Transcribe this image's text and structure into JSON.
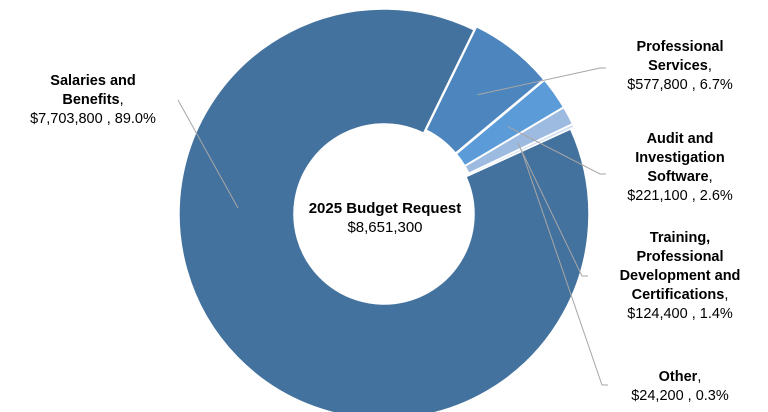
{
  "chart_data": {
    "type": "pie",
    "variant": "donut",
    "center_title": "2025 Budget Request",
    "center_value": "$8,651,300",
    "legend": "none",
    "slices": [
      {
        "label_lines": [
          "Salaries and",
          "Benefits"
        ],
        "value": 7703800,
        "value_text": "$7,703,800",
        "percent_text": "89.0%",
        "color": "#44729e"
      },
      {
        "label_lines": [
          "Professional",
          "Services"
        ],
        "value": 577800,
        "value_text": "$577,800",
        "percent_text": "6.7%",
        "color": "#4d86bf"
      },
      {
        "label_lines": [
          "Audit and",
          "Investigation",
          "Software"
        ],
        "value": 221100,
        "value_text": "$221,100",
        "percent_text": "2.6%",
        "color": "#5a9bd8"
      },
      {
        "label_lines": [
          "Training,",
          "Professional",
          "Development and",
          "Certifications"
        ],
        "value": 124400,
        "value_text": "$124,400",
        "percent_text": "1.4%",
        "color": "#9dbbe0"
      },
      {
        "label_lines": [
          "Other"
        ],
        "value": 24200,
        "value_text": "$24,200",
        "percent_text": "0.3%",
        "color": "#d4e1f1"
      }
    ]
  }
}
